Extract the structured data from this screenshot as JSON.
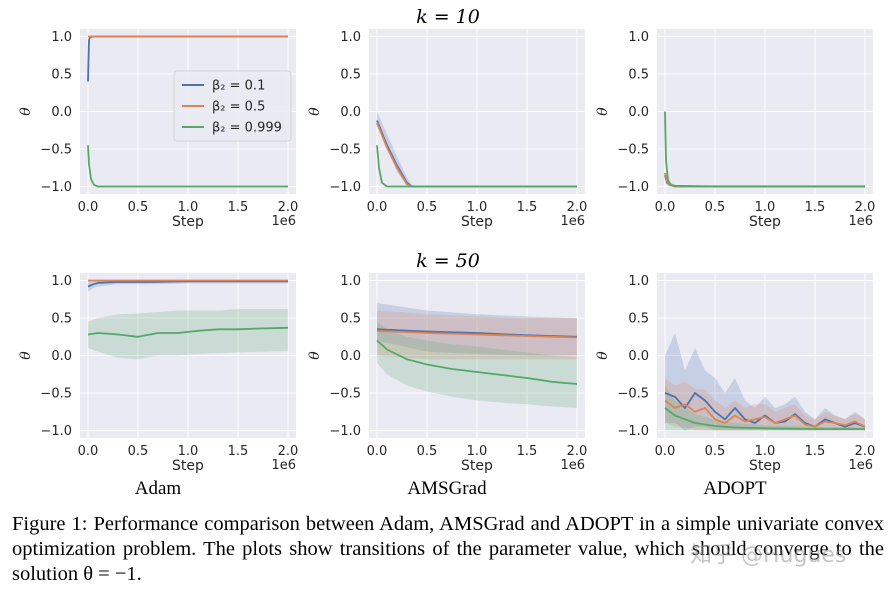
{
  "figure": {
    "row_titles": [
      "k = 10",
      "k = 50"
    ],
    "panel_titles": [
      "Adam",
      "AMSGrad",
      "ADOPT"
    ],
    "caption": "Figure 1: Performance comparison between Adam, AMSGrad and ADOPT in a simple univariate convex optimization problem.  The plots show transitions of the parameter value, which should converge to the solution θ = −1.",
    "watermark": "知乎 @Hugues"
  },
  "colors": {
    "beta_0_1": "#4c72b0",
    "beta_0_5": "#dd8452",
    "beta_0_999": "#55a868",
    "panel_bg": "#eaeaf2",
    "grid": "#ffffff"
  },
  "chart_data": [
    {
      "id": "k10_adam",
      "type": "line",
      "row_title": "k = 10",
      "xlabel": "Step",
      "ylabel": "θ",
      "x_multiplier": "1e6",
      "xlim": [
        -0.08,
        2.08
      ],
      "ylim": [
        -1.1,
        1.1
      ],
      "xticks": [
        0.0,
        0.5,
        1.0,
        1.5,
        2.0
      ],
      "yticks": [
        -1.0,
        -0.5,
        0.0,
        0.5,
        1.0
      ],
      "legend": {
        "placement": "center-right",
        "entries": [
          "β₂ = 0.1",
          "β₂ = 0.5",
          "β₂ = 0.999"
        ]
      },
      "series": [
        {
          "name": "β₂ = 0.1",
          "x": [
            0,
            0.01,
            0.02,
            0.05,
            0.3,
            1,
            2
          ],
          "y": [
            0.4,
            0.95,
            0.99,
            1,
            1,
            1,
            1
          ]
        },
        {
          "name": "β₂ = 0.5",
          "x": [
            0,
            0.02,
            0.05,
            0.3,
            1,
            2
          ],
          "y": [
            1,
            1,
            1,
            1,
            1,
            1
          ]
        },
        {
          "name": "β₂ = 0.999",
          "x": [
            0,
            0.01,
            0.03,
            0.06,
            0.1,
            0.5,
            1,
            2
          ],
          "y": [
            -0.45,
            -0.7,
            -0.9,
            -0.98,
            -1,
            -1,
            -1,
            -1
          ]
        }
      ]
    },
    {
      "id": "k10_amsgrad",
      "type": "line",
      "xlabel": "Step",
      "ylabel": "θ",
      "x_multiplier": "1e6",
      "xlim": [
        -0.08,
        2.08
      ],
      "ylim": [
        -1.1,
        1.1
      ],
      "xticks": [
        0.0,
        0.5,
        1.0,
        1.5,
        2.0
      ],
      "yticks": [
        -1.0,
        -0.5,
        0.0,
        0.5,
        1.0
      ],
      "series": [
        {
          "name": "β₂ = 0.1",
          "x": [
            0,
            0.1,
            0.2,
            0.3,
            0.35,
            0.5,
            1,
            2
          ],
          "y": [
            -0.12,
            -0.45,
            -0.72,
            -0.95,
            -1,
            -1,
            -1,
            -1
          ],
          "band_lower": [
            -0.2,
            -0.5,
            -0.8,
            -1,
            -1,
            -1,
            -1,
            -1
          ],
          "band_upper": [
            0,
            -0.3,
            -0.6,
            -0.88,
            -0.98,
            -1,
            -1,
            -1
          ]
        },
        {
          "name": "β₂ = 0.5",
          "x": [
            0,
            0.1,
            0.2,
            0.3,
            0.35,
            0.5,
            1,
            2
          ],
          "y": [
            -0.15,
            -0.48,
            -0.75,
            -0.97,
            -1,
            -1,
            -1,
            -1
          ]
        },
        {
          "name": "β₂ = 0.999",
          "x": [
            0,
            0.02,
            0.05,
            0.1,
            0.5,
            1,
            2
          ],
          "y": [
            -0.45,
            -0.75,
            -0.95,
            -1,
            -1,
            -1,
            -1
          ]
        }
      ]
    },
    {
      "id": "k10_adopt",
      "type": "line",
      "xlabel": "Step",
      "ylabel": "θ",
      "x_multiplier": "1e6",
      "xlim": [
        -0.08,
        2.08
      ],
      "ylim": [
        -1.1,
        1.1
      ],
      "xticks": [
        0.0,
        0.5,
        1.0,
        1.5,
        2.0
      ],
      "yticks": [
        -1.0,
        -0.5,
        0.0,
        0.5,
        1.0
      ],
      "series": [
        {
          "name": "β₂ = 0.1",
          "x": [
            0,
            0.02,
            0.05,
            0.1,
            0.5,
            1,
            2
          ],
          "y": [
            -0.85,
            -0.95,
            -0.98,
            -1,
            -1,
            -1,
            -1
          ]
        },
        {
          "name": "β₂ = 0.5",
          "x": [
            0,
            0.02,
            0.05,
            0.1,
            0.5,
            1,
            2
          ],
          "y": [
            -0.82,
            -0.93,
            -0.98,
            -1,
            -1,
            -1,
            -1
          ]
        },
        {
          "name": "β₂ = 0.999",
          "x": [
            0,
            0.01,
            0.03,
            0.06,
            0.1,
            0.5,
            1,
            2
          ],
          "y": [
            0.0,
            -0.65,
            -0.92,
            -0.98,
            -0.99,
            -1,
            -1,
            -1
          ],
          "band_lower": [
            -0.3,
            -0.8,
            -1,
            -1,
            -1,
            -1,
            -1,
            -1
          ],
          "band_upper": [
            0.05,
            -0.5,
            -0.85,
            -0.95,
            -0.98,
            -0.98,
            -0.98,
            -0.98
          ]
        }
      ]
    },
    {
      "id": "k50_adam",
      "type": "line",
      "row_title": "k = 50",
      "panel_title": "Adam",
      "xlabel": "Step",
      "ylabel": "θ",
      "x_multiplier": "1e6",
      "xlim": [
        -0.08,
        2.08
      ],
      "ylim": [
        -1.1,
        1.1
      ],
      "xticks": [
        0.0,
        0.5,
        1.0,
        1.5,
        2.0
      ],
      "yticks": [
        -1.0,
        -0.5,
        0.0,
        0.5,
        1.0
      ],
      "series": [
        {
          "name": "β₂ = 0.1",
          "x": [
            0,
            0.05,
            0.1,
            0.3,
            0.6,
            1,
            1.5,
            2
          ],
          "y": [
            0.92,
            0.95,
            0.97,
            0.98,
            0.98,
            0.99,
            0.99,
            0.99
          ],
          "band_lower": [
            0.85,
            0.9,
            0.92,
            0.95,
            0.95,
            0.96,
            0.96,
            0.96
          ],
          "band_upper": [
            0.99,
            1,
            1,
            1,
            1,
            1,
            1,
            1
          ]
        },
        {
          "name": "β₂ = 0.5",
          "x": [
            0,
            0.3,
            1,
            2
          ],
          "y": [
            1,
            1,
            1,
            1
          ]
        },
        {
          "name": "β₂ = 0.999",
          "x": [
            0,
            0.1,
            0.3,
            0.5,
            0.7,
            0.9,
            1.1,
            1.3,
            1.5,
            1.7,
            2
          ],
          "y": [
            0.28,
            0.3,
            0.28,
            0.25,
            0.3,
            0.3,
            0.33,
            0.35,
            0.35,
            0.36,
            0.37
          ],
          "band_lower": [
            0.1,
            0.05,
            -0.03,
            -0.05,
            0,
            0,
            0.02,
            0.03,
            0.04,
            0.05,
            0.06
          ],
          "band_upper": [
            0.45,
            0.5,
            0.55,
            0.56,
            0.58,
            0.6,
            0.6,
            0.6,
            0.62,
            0.62,
            0.62
          ]
        }
      ]
    },
    {
      "id": "k50_amsgrad",
      "type": "line",
      "panel_title": "AMSGrad",
      "xlabel": "Step",
      "ylabel": "θ",
      "x_multiplier": "1e6",
      "xlim": [
        -0.08,
        2.08
      ],
      "ylim": [
        -1.1,
        1.1
      ],
      "xticks": [
        0.0,
        0.5,
        1.0,
        1.5,
        2.0
      ],
      "yticks": [
        -1.0,
        -0.5,
        0.0,
        0.5,
        1.0
      ],
      "series": [
        {
          "name": "β₂ = 0.1",
          "x": [
            0,
            0.5,
            1,
            1.5,
            2
          ],
          "y": [
            0.35,
            0.32,
            0.3,
            0.27,
            0.25
          ],
          "band_lower": [
            0.2,
            0.05,
            0.02,
            0.0,
            0.0
          ],
          "band_upper": [
            0.7,
            0.6,
            0.55,
            0.52,
            0.5
          ]
        },
        {
          "name": "β₂ = 0.5",
          "x": [
            0,
            0.5,
            1,
            1.5,
            2
          ],
          "y": [
            0.33,
            0.3,
            0.28,
            0.26,
            0.24
          ],
          "band_lower": [
            0,
            -0.05,
            -0.05,
            -0.05,
            -0.05
          ],
          "band_upper": [
            0.6,
            0.55,
            0.52,
            0.5,
            0.5
          ]
        },
        {
          "name": "β₂ = 0.999",
          "x": [
            0,
            0.1,
            0.3,
            0.5,
            0.75,
            1,
            1.25,
            1.5,
            1.75,
            2
          ],
          "y": [
            0.2,
            0.08,
            -0.05,
            -0.12,
            -0.18,
            -0.22,
            -0.26,
            -0.3,
            -0.35,
            -0.38
          ],
          "band_lower": [
            -0.1,
            -0.25,
            -0.4,
            -0.48,
            -0.55,
            -0.6,
            -0.63,
            -0.65,
            -0.68,
            -0.7
          ],
          "band_upper": [
            0.45,
            0.35,
            0.25,
            0.2,
            0.15,
            0.12,
            0.08,
            0.04,
            0.0,
            -0.02
          ]
        }
      ]
    },
    {
      "id": "k50_adopt",
      "type": "line",
      "panel_title": "ADOPT",
      "xlabel": "Step",
      "ylabel": "θ",
      "x_multiplier": "1e6",
      "xlim": [
        -0.08,
        2.08
      ],
      "ylim": [
        -1.1,
        1.1
      ],
      "xticks": [
        0.0,
        0.5,
        1.0,
        1.5,
        2.0
      ],
      "yticks": [
        -1.0,
        -0.5,
        0.0,
        0.5,
        1.0
      ],
      "series": [
        {
          "name": "β₂ = 0.1",
          "x": [
            0,
            0.1,
            0.2,
            0.3,
            0.4,
            0.5,
            0.6,
            0.7,
            0.8,
            0.9,
            1.0,
            1.1,
            1.2,
            1.3,
            1.4,
            1.5,
            1.6,
            1.7,
            1.8,
            1.9,
            2.0
          ],
          "y": [
            -0.5,
            -0.55,
            -0.7,
            -0.5,
            -0.6,
            -0.75,
            -0.85,
            -0.7,
            -0.85,
            -0.9,
            -0.8,
            -0.9,
            -0.88,
            -0.78,
            -0.9,
            -0.95,
            -0.85,
            -0.9,
            -0.95,
            -0.9,
            -0.95
          ],
          "band_lower": [
            -0.9,
            -0.9,
            -1,
            -0.95,
            -0.95,
            -1,
            -1,
            -1,
            -1,
            -1,
            -1,
            -1,
            -1,
            -1,
            -1,
            -1,
            -1,
            -1,
            -1,
            -1,
            -1
          ],
          "band_upper": [
            0.0,
            0.3,
            -0.2,
            0.1,
            -0.2,
            -0.3,
            -0.5,
            -0.3,
            -0.6,
            -0.7,
            -0.55,
            -0.7,
            -0.65,
            -0.55,
            -0.75,
            -0.85,
            -0.7,
            -0.8,
            -0.85,
            -0.75,
            -0.85
          ]
        },
        {
          "name": "β₂ = 0.5",
          "x": [
            0,
            0.1,
            0.2,
            0.3,
            0.4,
            0.5,
            0.6,
            0.7,
            0.8,
            0.9,
            1.0,
            1.1,
            1.2,
            1.3,
            1.4,
            1.5,
            1.6,
            1.7,
            1.8,
            1.9,
            2.0
          ],
          "y": [
            -0.6,
            -0.7,
            -0.65,
            -0.75,
            -0.7,
            -0.85,
            -0.9,
            -0.8,
            -0.88,
            -0.85,
            -0.82,
            -0.9,
            -0.85,
            -0.8,
            -0.92,
            -0.95,
            -0.88,
            -0.9,
            -0.93,
            -0.88,
            -0.95
          ],
          "band_lower": [
            -0.9,
            -0.95,
            -0.95,
            -1,
            -1,
            -1,
            -1,
            -1,
            -1,
            -1,
            -1,
            -1,
            -1,
            -1,
            -1,
            -1,
            -1,
            -1,
            -1,
            -1,
            -1
          ],
          "band_upper": [
            -0.3,
            -0.4,
            -0.35,
            -0.45,
            -0.45,
            -0.6,
            -0.7,
            -0.6,
            -0.7,
            -0.65,
            -0.65,
            -0.75,
            -0.7,
            -0.65,
            -0.8,
            -0.85,
            -0.75,
            -0.8,
            -0.85,
            -0.78,
            -0.85
          ]
        },
        {
          "name": "β₂ = 0.999",
          "x": [
            0,
            0.05,
            0.1,
            0.2,
            0.3,
            0.4,
            0.5,
            0.7,
            1,
            1.5,
            2
          ],
          "y": [
            -0.7,
            -0.75,
            -0.8,
            -0.85,
            -0.9,
            -0.92,
            -0.94,
            -0.96,
            -0.97,
            -0.98,
            -0.98
          ],
          "band_lower": [
            -1,
            -1,
            -1,
            -1,
            -1,
            -1,
            -1,
            -1,
            -1,
            -1,
            -1
          ],
          "band_upper": [
            -0.4,
            -0.5,
            -0.6,
            -0.7,
            -0.78,
            -0.82,
            -0.86,
            -0.9,
            -0.93,
            -0.95,
            -0.96
          ]
        }
      ]
    }
  ]
}
